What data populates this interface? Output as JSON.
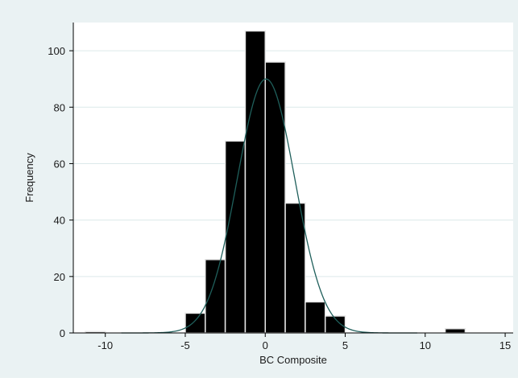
{
  "chart_data": {
    "type": "bar",
    "subtype": "histogram-with-normal-density",
    "title": "",
    "xlabel": "BC Composite",
    "ylabel": "Frequency",
    "xlim": [
      -12,
      15.5
    ],
    "ylim": [
      0,
      110
    ],
    "xticks": [
      -10,
      -5,
      0,
      5,
      10,
      15
    ],
    "yticks": [
      0,
      20,
      40,
      60,
      80,
      100
    ],
    "grid": "horizontal",
    "legend": "none",
    "bins": [
      {
        "x0": -11.25,
        "x1": -10.0,
        "count": 0.5
      },
      {
        "x0": -5.0,
        "x1": -3.75,
        "count": 7
      },
      {
        "x0": -3.75,
        "x1": -2.5,
        "count": 26
      },
      {
        "x0": -2.5,
        "x1": -1.25,
        "count": 68
      },
      {
        "x0": -1.25,
        "x1": 0.0,
        "count": 107
      },
      {
        "x0": 0.0,
        "x1": 1.25,
        "count": 96
      },
      {
        "x0": 1.25,
        "x1": 2.5,
        "count": 46
      },
      {
        "x0": 2.5,
        "x1": 3.75,
        "count": 11
      },
      {
        "x0": 3.75,
        "x1": 5.0,
        "count": 6
      },
      {
        "x0": 11.25,
        "x1": 12.5,
        "count": 1.5
      }
    ],
    "normal_curve": {
      "mean": 0.05,
      "sd": 1.8,
      "peak": 90
    },
    "colors": {
      "outer_background": "#eaf2f3",
      "plot_background": "#ffffff",
      "bar_fill": "#000000",
      "bar_edge": "#e6e6e6",
      "curve": "#1f5f5b",
      "grid": "#dce9ea",
      "axis": "#000000"
    }
  }
}
